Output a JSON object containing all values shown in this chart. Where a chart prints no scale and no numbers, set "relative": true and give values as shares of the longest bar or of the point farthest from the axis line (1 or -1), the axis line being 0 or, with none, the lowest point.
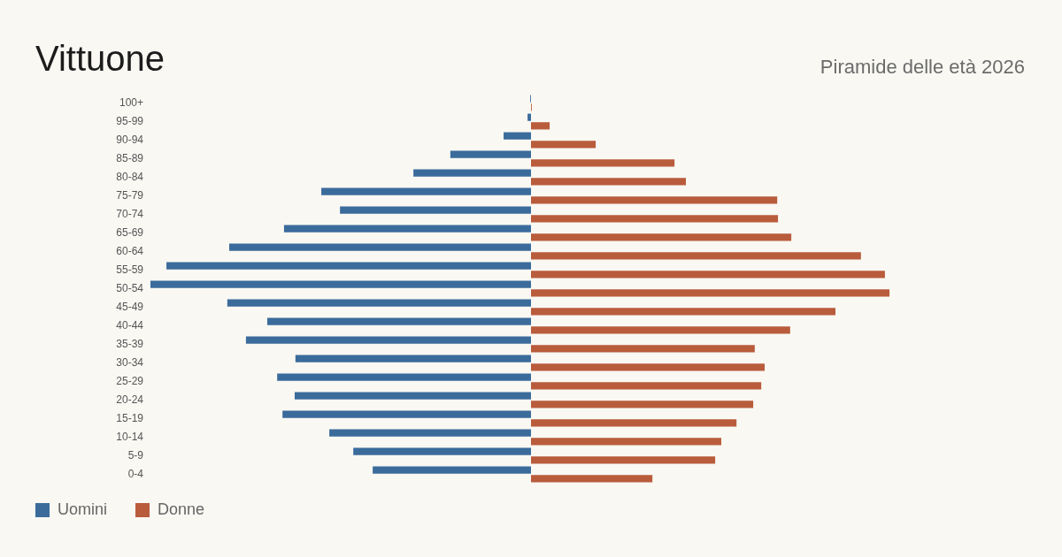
{
  "chart_data": {
    "type": "bar",
    "orientation": "horizontal",
    "relative": true,
    "title": "Vittuone",
    "subtitle": "Piramide delle età 2026",
    "legend": "bottom left",
    "categories": [
      "100+",
      "95-99",
      "90-94",
      "85-89",
      "80-84",
      "75-79",
      "70-74",
      "65-69",
      "60-64",
      "55-59",
      "50-54",
      "45-49",
      "40-44",
      "35-39",
      "30-34",
      "25-29",
      "20-24",
      "15-19",
      "10-14",
      "5-9",
      "0-4"
    ],
    "series": [
      {
        "name": "Uomini",
        "color": "#3b6b9b",
        "values": [
          -0.002,
          -0.009,
          -0.072,
          -0.212,
          -0.309,
          -0.551,
          -0.502,
          -0.649,
          -0.793,
          -0.958,
          -1,
          -0.798,
          -0.693,
          -0.749,
          -0.619,
          -0.667,
          -0.621,
          -0.653,
          -0.53,
          -0.467,
          -0.416
        ]
      },
      {
        "name": "Donne",
        "color": "#b95c3c",
        "values": [
          0.002,
          0.049,
          0.17,
          0.377,
          0.407,
          0.647,
          0.649,
          0.684,
          0.867,
          0.93,
          0.942,
          0.8,
          0.681,
          0.588,
          0.614,
          0.605,
          0.584,
          0.54,
          0.5,
          0.484,
          0.319
        ]
      }
    ]
  }
}
